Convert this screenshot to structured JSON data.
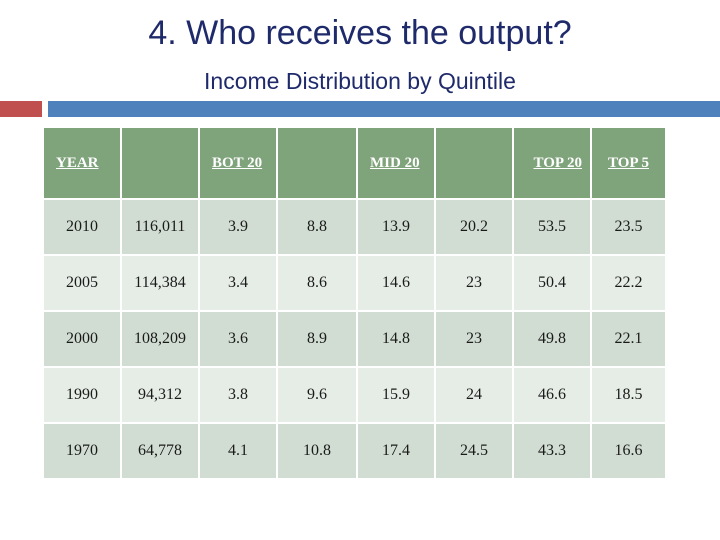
{
  "slide": {
    "title": "4. Who receives the output?",
    "subtitle": "Income Distribution by Quintile",
    "colors": {
      "red_bar": "#c0504d",
      "blue_bar": "#4f81bd",
      "header_bg": "#7fa37a",
      "row_dark": "#d1ddd2",
      "row_light": "#e6ede6"
    }
  },
  "table": {
    "headers": [
      "YEAR",
      "",
      "BOT 20",
      "",
      "MID 20",
      "",
      "TOP 20",
      "TOP 5"
    ],
    "rows": [
      [
        "2010",
        "116,011",
        "3.9",
        "8.8",
        "13.9",
        "20.2",
        "53.5",
        "23.5"
      ],
      [
        "2005",
        "114,384",
        "3.4",
        "8.6",
        "14.6",
        "23",
        "50.4",
        "22.2"
      ],
      [
        "2000",
        "108,209",
        "3.6",
        "8.9",
        "14.8",
        "23",
        "49.8",
        "22.1"
      ],
      [
        "1990",
        "94,312",
        "3.8",
        "9.6",
        "15.9",
        "24",
        "46.6",
        "18.5"
      ],
      [
        "1970",
        "64,778",
        "4.1",
        "10.8",
        "17.4",
        "24.5",
        "43.3",
        "16.6"
      ]
    ]
  }
}
